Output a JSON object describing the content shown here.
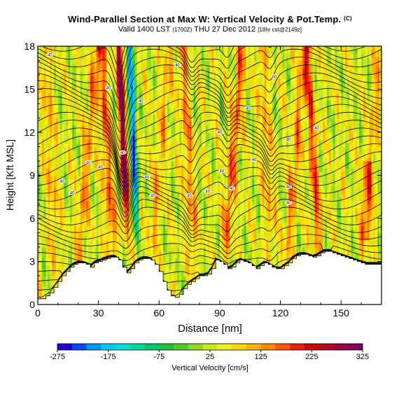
{
  "header": {
    "title": "Wind-Parallel Section at Max W: Vertical Velocity & Pot.Temp.",
    "title_mark": "(C)",
    "valid_main": "Valid 1400 LST",
    "valid_utc": "(1700Z)",
    "valid_date": "THU 27 Dec 2012",
    "valid_model": "[18hr cst@2149z]"
  },
  "chart_data": {
    "type": "heatmap",
    "title": "Wind-Parallel Section at Max W: Vertical Velocity & Pot.Temp.",
    "xlabel": "Distance [nm]",
    "ylabel": "Height [Kft MSL]",
    "xlim": [
      0,
      170
    ],
    "ylim": [
      0,
      18
    ],
    "x_ticks": [
      0,
      30,
      60,
      90,
      120,
      150
    ],
    "y_ticks": [
      0,
      3,
      6,
      9,
      12,
      15,
      18
    ],
    "colorbar": {
      "label": "Vertical Velocity [cm/s]",
      "min": -275,
      "max": 325,
      "ticks": [
        -275,
        -175,
        -75,
        25,
        125,
        225,
        325
      ],
      "colors": [
        "#1d00d6",
        "#0048ff",
        "#0094ff",
        "#00c8ff",
        "#00e0d0",
        "#00d8a0",
        "#00c870",
        "#20c040",
        "#58c828",
        "#94d820",
        "#c8e820",
        "#f0f020",
        "#ffd800",
        "#ffb000",
        "#ff8800",
        "#ff5400",
        "#ee1c00",
        "#d00000",
        "#b80020",
        "#980040",
        "#800060"
      ]
    },
    "terrain": {
      "x": [
        0,
        2,
        4,
        6,
        8,
        10,
        12,
        14,
        16,
        18,
        20,
        22,
        24,
        26,
        28,
        30,
        32,
        34,
        36,
        38,
        40,
        42,
        44,
        46,
        48,
        50,
        52,
        54,
        56,
        58,
        60,
        62,
        64,
        66,
        68,
        70,
        72,
        74,
        76,
        78,
        80,
        82,
        84,
        86,
        88,
        90,
        92,
        94,
        96,
        98,
        100,
        102,
        104,
        106,
        108,
        110,
        112,
        114,
        116,
        118,
        120,
        122,
        124,
        126,
        128,
        130,
        132,
        134,
        136,
        138,
        140,
        142,
        144,
        146,
        148,
        150,
        152,
        154,
        156,
        158,
        160,
        162,
        164,
        166,
        168,
        170
      ],
      "height_kft": [
        0.4,
        0.4,
        0.6,
        0.8,
        1.2,
        1.6,
        2.0,
        2.3,
        2.6,
        2.8,
        2.9,
        2.9,
        2.8,
        2.6,
        2.9,
        3.0,
        3.1,
        3.2,
        3.3,
        3.3,
        3.1,
        2.6,
        2.2,
        2.5,
        2.9,
        3.1,
        3.2,
        3.2,
        3.1,
        2.8,
        2.3,
        1.6,
        1.0,
        0.6,
        0.5,
        0.7,
        1.1,
        1.4,
        1.6,
        1.8,
        2.0,
        2.0,
        2.1,
        2.5,
        3.1,
        3.0,
        2.8,
        2.5,
        2.6,
        2.9,
        3.1,
        3.0,
        2.9,
        2.7,
        2.5,
        2.7,
        2.9,
        2.8,
        2.6,
        2.5,
        2.5,
        2.7,
        2.9,
        3.2,
        3.4,
        3.5,
        3.5,
        3.4,
        3.3,
        3.4,
        3.6,
        3.7,
        3.7,
        3.6,
        3.5,
        3.4,
        3.3,
        3.2,
        3.1,
        3.0,
        2.9,
        2.8,
        2.8,
        2.8,
        2.8,
        2.8
      ]
    },
    "features": {
      "max_updraft": {
        "x_nm": 44,
        "w_cms": 320
      },
      "max_downdraft": {
        "x_nm": 49,
        "w_cms": -240
      },
      "secondary_updrafts_x_nm": [
        8,
        22,
        36,
        58,
        76,
        94,
        115,
        125,
        138,
        162
      ]
    },
    "theta_contours_K": [
      {
        "label": "40",
        "x": 6,
        "y": 17.4
      },
      {
        "label": "40",
        "x": 35,
        "y": 15.1
      },
      {
        "label": "40",
        "x": 51,
        "y": 14.2
      },
      {
        "label": "40",
        "x": 69,
        "y": 16.7
      },
      {
        "label": "40",
        "x": 90,
        "y": 12.0
      },
      {
        "label": "40",
        "x": 104,
        "y": 13.7
      },
      {
        "label": "40",
        "x": 117,
        "y": 15.9
      },
      {
        "label": "40",
        "x": 138,
        "y": 12.3
      },
      {
        "label": "40",
        "x": 42,
        "y": 10.6
      },
      {
        "label": "40",
        "x": 31,
        "y": 9.6
      },
      {
        "label": "40",
        "x": 25,
        "y": 9.9
      },
      {
        "label": "40",
        "x": 17,
        "y": 7.8
      },
      {
        "label": "40",
        "x": 12,
        "y": 8.6
      },
      {
        "label": "40",
        "x": 54,
        "y": 8.9
      },
      {
        "label": "40",
        "x": 57,
        "y": 7.6
      },
      {
        "label": "40",
        "x": 75,
        "y": 7.6
      },
      {
        "label": "40",
        "x": 84,
        "y": 7.9
      },
      {
        "label": "40",
        "x": 91,
        "y": 9.3
      },
      {
        "label": "40",
        "x": 96,
        "y": 8.1
      },
      {
        "label": "40",
        "x": 107,
        "y": 10.1
      },
      {
        "label": "40",
        "x": 124,
        "y": 11.5
      },
      {
        "label": "40",
        "x": 124,
        "y": 8.2
      },
      {
        "label": "40",
        "x": 124,
        "y": 7.1
      }
    ]
  }
}
